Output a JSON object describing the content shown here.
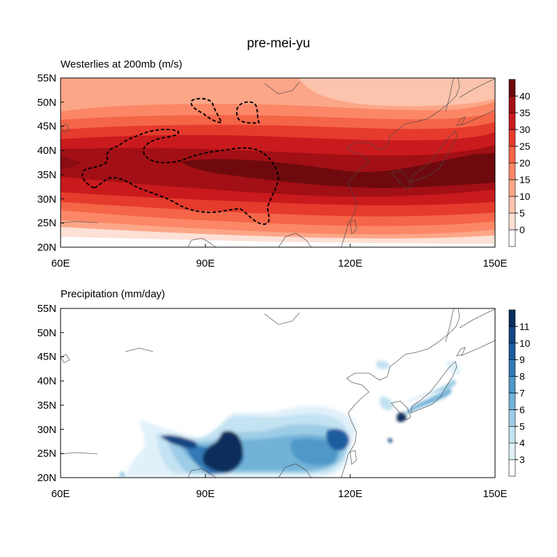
{
  "figure": {
    "title": "pre-mei-yu"
  },
  "panels": [
    {
      "id": "westerlies",
      "title": "Westerlies at 200mb (m/s)",
      "lat_ticks": [
        "55N",
        "50N",
        "45N",
        "40N",
        "35N",
        "30N",
        "25N",
        "20N"
      ],
      "lon_ticks": [
        "60E",
        "90E",
        "120E",
        "150E"
      ],
      "colorbar": {
        "labels": [
          "0",
          "5",
          "10",
          "15",
          "20",
          "25",
          "30",
          "35",
          "40"
        ],
        "colors": [
          "#ffffff",
          "#fde0d6",
          "#fcc3ad",
          "#fca688",
          "#fb8767",
          "#f56548",
          "#e53b2d",
          "#c91a1d",
          "#a20f15",
          "#6e0a0e"
        ]
      },
      "dashed_contour": "Tibetan Plateau outline"
    },
    {
      "id": "precipitation",
      "title": "Precipitation (mm/day)",
      "lat_ticks": [
        "55N",
        "50N",
        "45N",
        "40N",
        "35N",
        "30N",
        "25N",
        "20N"
      ],
      "lon_ticks": [
        "60E",
        "90E",
        "120E",
        "150E"
      ],
      "colorbar": {
        "labels": [
          "3",
          "4",
          "5",
          "6",
          "7",
          "8",
          "9",
          "10",
          "11"
        ],
        "colors": [
          "#ffffff",
          "#e1f1fa",
          "#c3e2f2",
          "#9dcde6",
          "#72b2d8",
          "#4f98c8",
          "#3179b6",
          "#1d5da0",
          "#124683",
          "#0a2e5c"
        ]
      }
    }
  ],
  "chart_data": [
    {
      "type": "heatmap",
      "title": "Westerlies at 200mb (m/s)",
      "xlabel": "",
      "ylabel": "",
      "xlim": [
        60,
        150
      ],
      "ylim": [
        20,
        55
      ],
      "x_ticks": [
        60,
        90,
        120,
        150
      ],
      "y_ticks": [
        20,
        25,
        30,
        35,
        40,
        45,
        50,
        55
      ],
      "levels": [
        0,
        5,
        10,
        15,
        20,
        25,
        30,
        35,
        40
      ],
      "jet_core_lat_by_lon": [
        [
          60,
          38.5
        ],
        [
          90,
          37.5
        ],
        [
          120,
          35.5
        ],
        [
          150,
          37.5
        ]
      ],
      "max_speed_approx": 43
    },
    {
      "type": "heatmap",
      "title": "Precipitation (mm/day)",
      "xlabel": "",
      "ylabel": "",
      "xlim": [
        60,
        150
      ],
      "ylim": [
        20,
        55
      ],
      "x_ticks": [
        60,
        90,
        120,
        150
      ],
      "y_ticks": [
        20,
        25,
        30,
        35,
        40,
        45,
        50,
        55
      ],
      "levels": [
        3,
        4,
        5,
        6,
        7,
        8,
        9,
        10,
        11
      ],
      "maxima": [
        {
          "lon": 92,
          "lat": 24.5,
          "value": 12
        },
        {
          "lon": 119,
          "lat": 27,
          "value": 10
        },
        {
          "lon": 131,
          "lat": 32.5,
          "value": 11
        }
      ]
    }
  ]
}
